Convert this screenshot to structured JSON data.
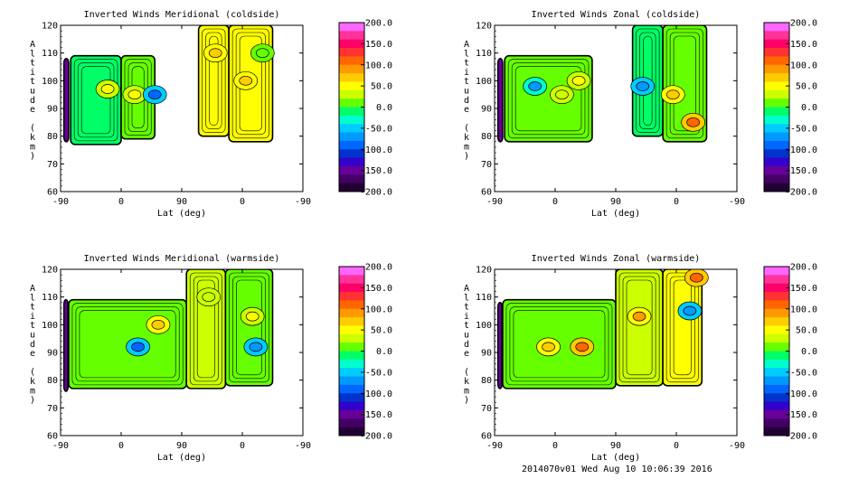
{
  "footer": "2014070v01 Wed Aug 10 10:06:39 2016",
  "colorbar": {
    "tick_labels": [
      "200.0",
      "150.0",
      "100.0",
      "50.0",
      "0.0",
      "-50.0",
      "-100.0",
      "-150.0",
      "-200.0"
    ],
    "range": [
      -200,
      200
    ],
    "colors": [
      "#ff66ff",
      "#ff3399",
      "#ff0066",
      "#ff3333",
      "#ff6600",
      "#ff9900",
      "#ffcc00",
      "#ffff00",
      "#ccff00",
      "#66ff00",
      "#00ff66",
      "#00ffcc",
      "#00ccff",
      "#0099ff",
      "#0066ff",
      "#0033cc",
      "#3300cc",
      "#660099",
      "#440066",
      "#220033"
    ]
  },
  "chart_data": [
    {
      "type": "heatmap",
      "title": "Inverted Winds Meridional (coldside)",
      "xlabel": "Lat (deg)",
      "ylabel": "Altitude (km)",
      "x_tick_labels": [
        "-90",
        "0",
        "90",
        "0",
        "-90"
      ],
      "y_tick_labels": [
        "60",
        "70",
        "80",
        "90",
        "100",
        "110",
        "120"
      ],
      "ylim": [
        60,
        120
      ],
      "x_segments": [
        [
          -90,
          90
        ],
        [
          90,
          -90
        ]
      ],
      "blocks": [
        {
          "x": [
            -85,
            -78
          ],
          "y": [
            78,
            108
          ],
          "value": -150
        },
        {
          "x": [
            -75,
            0
          ],
          "y": [
            77,
            109
          ],
          "value": 0
        },
        {
          "x": [
            0,
            50
          ],
          "y": [
            79,
            109
          ],
          "value": 20
        },
        {
          "x": [
            115,
            160
          ],
          "y": [
            80,
            120
          ],
          "value": 60
        },
        {
          "x": [
            160,
            225
          ],
          "y": [
            78,
            120
          ],
          "value": 50
        }
      ],
      "features": [
        {
          "x": -20,
          "y": 97,
          "value": 50
        },
        {
          "x": 20,
          "y": 95,
          "value": 60
        },
        {
          "x": 50,
          "y": 95,
          "value": -80
        },
        {
          "x": 140,
          "y": 110,
          "value": 80
        },
        {
          "x": 185,
          "y": 100,
          "value": 70
        },
        {
          "x": 210,
          "y": 110,
          "value": 20
        }
      ]
    },
    {
      "type": "heatmap",
      "title": "Inverted Winds Zonal (coldside)",
      "xlabel": "Lat (deg)",
      "ylabel": "Altitude (km)",
      "x_tick_labels": [
        "-90",
        "0",
        "90",
        "0",
        "-90"
      ],
      "y_tick_labels": [
        "60",
        "70",
        "80",
        "90",
        "100",
        "110",
        "120"
      ],
      "ylim": [
        60,
        120
      ],
      "x_segments": [
        [
          -90,
          90
        ],
        [
          90,
          -90
        ]
      ],
      "blocks": [
        {
          "x": [
            -85,
            -78
          ],
          "y": [
            78,
            108
          ],
          "value": -150
        },
        {
          "x": [
            -75,
            55
          ],
          "y": [
            78,
            109
          ],
          "value": 5
        },
        {
          "x": [
            115,
            160
          ],
          "y": [
            80,
            120
          ],
          "value": -10
        },
        {
          "x": [
            160,
            225
          ],
          "y": [
            78,
            120
          ],
          "value": 20
        }
      ],
      "features": [
        {
          "x": -30,
          "y": 98,
          "value": -60
        },
        {
          "x": 10,
          "y": 95,
          "value": 40
        },
        {
          "x": 35,
          "y": 100,
          "value": 60
        },
        {
          "x": 130,
          "y": 98,
          "value": -70
        },
        {
          "x": 175,
          "y": 95,
          "value": 70
        },
        {
          "x": 205,
          "y": 85,
          "value": 110
        }
      ]
    },
    {
      "type": "heatmap",
      "title": "Inverted Winds Meridional (warmside)",
      "xlabel": "Lat (deg)",
      "ylabel": "Altitude (km)",
      "x_tick_labels": [
        "-90",
        "0",
        "90",
        "0",
        "-90"
      ],
      "y_tick_labels": [
        "60",
        "70",
        "80",
        "90",
        "100",
        "110",
        "120"
      ],
      "ylim": [
        60,
        120
      ],
      "x_segments": [
        [
          -90,
          90
        ],
        [
          90,
          -90
        ]
      ],
      "blocks": [
        {
          "x": [
            -85,
            -79
          ],
          "y": [
            76,
            109
          ],
          "value": -150
        },
        {
          "x": [
            -78,
            97
          ],
          "y": [
            77,
            109
          ],
          "value": 10
        },
        {
          "x": [
            97,
            155
          ],
          "y": [
            77,
            120
          ],
          "value": 25
        },
        {
          "x": [
            155,
            225
          ],
          "y": [
            78,
            120
          ],
          "value": 15
        }
      ],
      "features": [
        {
          "x": 25,
          "y": 92,
          "value": -90
        },
        {
          "x": 55,
          "y": 100,
          "value": 70
        },
        {
          "x": 130,
          "y": 110,
          "value": 40
        },
        {
          "x": 195,
          "y": 103,
          "value": 60
        },
        {
          "x": 200,
          "y": 92,
          "value": -70
        }
      ]
    },
    {
      "type": "heatmap",
      "title": "Inverted Winds Zonal (warmside)",
      "xlabel": "Lat (deg)",
      "ylabel": "Altitude (km)",
      "x_tick_labels": [
        "-90",
        "0",
        "90",
        "0",
        "-90"
      ],
      "y_tick_labels": [
        "60",
        "70",
        "80",
        "90",
        "100",
        "110",
        "120"
      ],
      "ylim": [
        60,
        120
      ],
      "x_segments": [
        [
          -90,
          90
        ],
        [
          90,
          -90
        ]
      ],
      "blocks": [
        {
          "x": [
            -85,
            -79
          ],
          "y": [
            77,
            108
          ],
          "value": -150
        },
        {
          "x": [
            -78,
            90
          ],
          "y": [
            77,
            109
          ],
          "value": 10
        },
        {
          "x": [
            90,
            160
          ],
          "y": [
            78,
            120
          ],
          "value": 25
        },
        {
          "x": [
            160,
            218
          ],
          "y": [
            78,
            120
          ],
          "value": 45
        }
      ],
      "features": [
        {
          "x": -10,
          "y": 92,
          "value": 80
        },
        {
          "x": 40,
          "y": 92,
          "value": 110
        },
        {
          "x": 125,
          "y": 103,
          "value": 90
        },
        {
          "x": 200,
          "y": 105,
          "value": -70
        },
        {
          "x": 210,
          "y": 117,
          "value": 110
        }
      ]
    }
  ]
}
